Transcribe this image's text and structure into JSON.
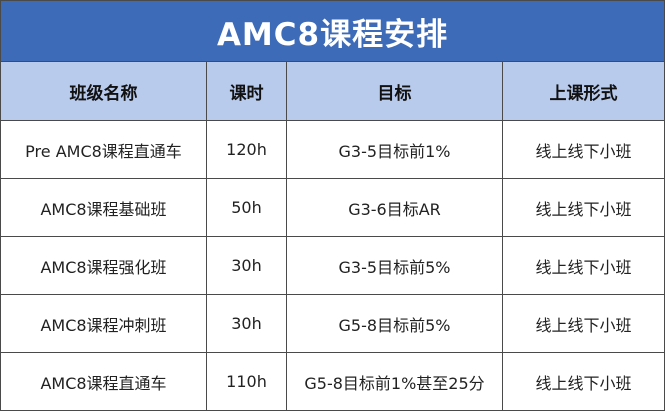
{
  "title": "AMC8课程安排",
  "headers": [
    "班级名称",
    "课时",
    "目标",
    "上课形式"
  ],
  "rows": [
    {
      "name": "Pre AMC8课程直通车",
      "hours": "120h",
      "goal": "G3-5目标前1%",
      "format": "线上线下小班"
    },
    {
      "name": "AMC8课程基础班",
      "hours": "50h",
      "goal": "G3-6目标AR",
      "format": "线上线下小班"
    },
    {
      "name": "AMC8课程强化班",
      "hours": "30h",
      "goal": "G3-5目标前5%",
      "format": "线上线下小班"
    },
    {
      "name": "AMC8课程冲刺班",
      "hours": "30h",
      "goal": "G5-8目标前5%",
      "format": "线上线下小班"
    },
    {
      "name": "AMC8课程直通车",
      "hours": "110h",
      "goal": "G5-8目标前1%甚至25分",
      "format": "线上线下小班"
    }
  ]
}
